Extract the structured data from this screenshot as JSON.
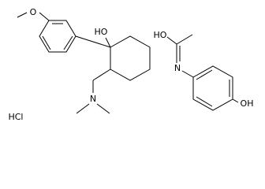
{
  "molecules": [
    {
      "atoms": [
        {
          "label": "O"
        },
        {
          "label": "HO"
        },
        {
          "label": "N"
        }
      ]
    },
    {
      "atoms": [
        {
          "label": "HO"
        },
        {
          "label": "N"
        },
        {
          "label": "OH"
        }
      ]
    }
  ],
  "salt": {
    "label": "HCl"
  }
}
